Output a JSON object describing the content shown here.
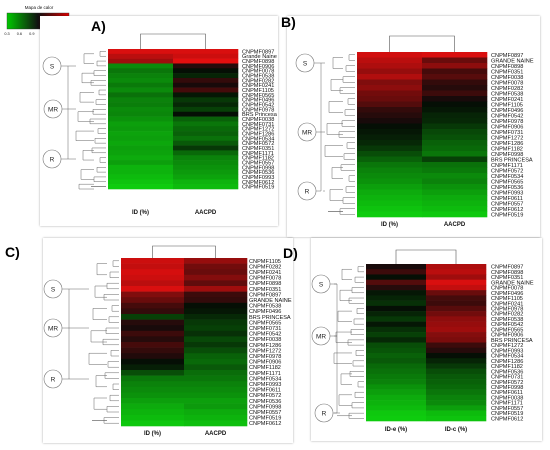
{
  "legend": {
    "title": "Mapa de calor",
    "ticks": [
      "0.3",
      "0.6",
      "0.9",
      "1.2",
      "1.5",
      "2.0"
    ]
  },
  "panels": [
    {
      "id": "A",
      "letter": "A)",
      "columns": [
        "ID (%)",
        "AACPD"
      ],
      "groups": [
        "S",
        "MR",
        "R"
      ],
      "rows": [
        {
          "name": "CNPMF0897",
          "v": [
            0.95,
            0.95
          ]
        },
        {
          "name": "Grande Naine",
          "v": [
            0.88,
            0.92
          ]
        },
        {
          "name": "CNPMF0898",
          "v": [
            0.82,
            0.97
          ]
        },
        {
          "name": "CNPMF0906",
          "v": [
            0.2,
            0.55
          ]
        },
        {
          "name": "CNPMF0078",
          "v": [
            0.25,
            0.5
          ]
        },
        {
          "name": "CNPMF0538",
          "v": [
            0.22,
            0.45
          ]
        },
        {
          "name": "CNPMF0282",
          "v": [
            0.2,
            0.58
          ]
        },
        {
          "name": "CNPMF0241",
          "v": [
            0.24,
            0.52
          ]
        },
        {
          "name": "CNPMF1105",
          "v": [
            0.2,
            0.62
          ]
        },
        {
          "name": "CNPMF0565",
          "v": [
            0.26,
            0.48
          ]
        },
        {
          "name": "CNPMF0496",
          "v": [
            0.22,
            0.4
          ]
        },
        {
          "name": "CNPMF0542",
          "v": [
            0.23,
            0.44
          ]
        },
        {
          "name": "CNPMF0978",
          "v": [
            0.2,
            0.38
          ]
        },
        {
          "name": "BRS Princesa",
          "v": [
            0.21,
            0.5
          ]
        },
        {
          "name": "CNPMF0038",
          "v": [
            0.18,
            0.3
          ]
        },
        {
          "name": "CNPMF0731",
          "v": [
            0.15,
            0.25
          ]
        },
        {
          "name": "CNPMF1272",
          "v": [
            0.16,
            0.28
          ]
        },
        {
          "name": "CNPMF1286",
          "v": [
            0.14,
            0.3
          ]
        },
        {
          "name": "CNPMF0534",
          "v": [
            0.15,
            0.26
          ]
        },
        {
          "name": "CNPMF0572",
          "v": [
            0.13,
            0.32
          ]
        },
        {
          "name": "CNPMF0351",
          "v": [
            0.15,
            0.4
          ]
        },
        {
          "name": "CNPMF1171",
          "v": [
            0.14,
            0.28
          ]
        },
        {
          "name": "CNPMF1182",
          "v": [
            0.12,
            0.22
          ]
        },
        {
          "name": "CNPMF0557",
          "v": [
            0.15,
            0.2
          ]
        },
        {
          "name": "CNPMF0998",
          "v": [
            0.1,
            0.18
          ]
        },
        {
          "name": "CNPMF0536",
          "v": [
            0.1,
            0.16
          ]
        },
        {
          "name": "CNPMF0993",
          "v": [
            0.08,
            0.14
          ]
        },
        {
          "name": "CNPMF0612",
          "v": [
            0.06,
            0.1
          ]
        },
        {
          "name": "CNPMF0519",
          "v": [
            0.04,
            0.08
          ]
        }
      ]
    },
    {
      "id": "B",
      "letter": "B)",
      "columns": [
        "ID (%)",
        "AACPD"
      ],
      "groups": [
        "S",
        "MR",
        "R"
      ],
      "rows": [
        {
          "name": "CNPMF0897",
          "v": [
            0.93,
            0.95
          ]
        },
        {
          "name": "GRANDE NAINE",
          "v": [
            0.88,
            0.7
          ]
        },
        {
          "name": "CNPMF0898",
          "v": [
            0.85,
            0.78
          ]
        },
        {
          "name": "CNPMF0351",
          "v": [
            0.8,
            0.62
          ]
        },
        {
          "name": "CNPMF0038",
          "v": [
            0.86,
            0.66
          ]
        },
        {
          "name": "CNPMF0078",
          "v": [
            0.75,
            0.58
          ]
        },
        {
          "name": "CNPMF0282",
          "v": [
            0.78,
            0.55
          ]
        },
        {
          "name": "CNPMF0538",
          "v": [
            0.72,
            0.6
          ]
        },
        {
          "name": "CNPMF0241",
          "v": [
            0.7,
            0.52
          ]
        },
        {
          "name": "CNPMF1105",
          "v": [
            0.65,
            0.5
          ]
        },
        {
          "name": "CNPMF0496",
          "v": [
            0.58,
            0.48
          ]
        },
        {
          "name": "CNPMF0542",
          "v": [
            0.55,
            0.45
          ]
        },
        {
          "name": "CNPMF0978",
          "v": [
            0.52,
            0.44
          ]
        },
        {
          "name": "CNPMF0906",
          "v": [
            0.5,
            0.4
          ]
        },
        {
          "name": "CNPMF0731",
          "v": [
            0.48,
            0.36
          ]
        },
        {
          "name": "CNPMF1272",
          "v": [
            0.46,
            0.34
          ]
        },
        {
          "name": "CNPMF1286",
          "v": [
            0.44,
            0.3
          ]
        },
        {
          "name": "CNPMF1182",
          "v": [
            0.4,
            0.28
          ]
        },
        {
          "name": "CNPMF0998",
          "v": [
            0.35,
            0.25
          ]
        },
        {
          "name": "BRS PRINCESA",
          "v": [
            0.3,
            0.38
          ]
        },
        {
          "name": "CNPMF1171",
          "v": [
            0.25,
            0.26
          ]
        },
        {
          "name": "CNPMF0572",
          "v": [
            0.22,
            0.24
          ]
        },
        {
          "name": "CNPMF0534",
          "v": [
            0.2,
            0.2
          ]
        },
        {
          "name": "CNPMF0565",
          "v": [
            0.18,
            0.22
          ]
        },
        {
          "name": "CNPMF0536",
          "v": [
            0.15,
            0.18
          ]
        },
        {
          "name": "CNPMF0993",
          "v": [
            0.12,
            0.15
          ]
        },
        {
          "name": "CNPMF0611",
          "v": [
            0.1,
            0.12
          ]
        },
        {
          "name": "CNPMF0557",
          "v": [
            0.08,
            0.1
          ]
        },
        {
          "name": "CNPMF0612",
          "v": [
            0.06,
            0.08
          ]
        },
        {
          "name": "CNPMF0519",
          "v": [
            0.04,
            0.05
          ]
        }
      ]
    },
    {
      "id": "C",
      "letter": "C)",
      "columns": [
        "ID (%)",
        "AACPD"
      ],
      "groups": [
        "S",
        "MR",
        "R"
      ],
      "rows": [
        {
          "name": "CNPMF1105",
          "v": [
            0.92,
            0.8
          ]
        },
        {
          "name": "CNPMF0282",
          "v": [
            0.9,
            0.72
          ]
        },
        {
          "name": "CNPMF0241",
          "v": [
            0.94,
            0.7
          ]
        },
        {
          "name": "CNPMF0078",
          "v": [
            0.92,
            0.76
          ]
        },
        {
          "name": "CNPMF0898",
          "v": [
            0.88,
            0.68
          ]
        },
        {
          "name": "CNPMF0351",
          "v": [
            0.95,
            0.82
          ]
        },
        {
          "name": "CNPMF0897",
          "v": [
            0.75,
            0.6
          ]
        },
        {
          "name": "GRANDE NAINE",
          "v": [
            0.7,
            0.58
          ]
        },
        {
          "name": "CNPMF0538",
          "v": [
            0.62,
            0.5
          ]
        },
        {
          "name": "CNPMF0496",
          "v": [
            0.58,
            0.48
          ]
        },
        {
          "name": "BRS PRINCESA",
          "v": [
            0.38,
            0.44
          ]
        },
        {
          "name": "CNPMF0565",
          "v": [
            0.55,
            0.4
          ]
        },
        {
          "name": "CNPMF0731",
          "v": [
            0.52,
            0.38
          ]
        },
        {
          "name": "CNPMF0542",
          "v": [
            0.6,
            0.42
          ]
        },
        {
          "name": "CNPMF0038",
          "v": [
            0.55,
            0.36
          ]
        },
        {
          "name": "CNPMF1286",
          "v": [
            0.62,
            0.4
          ]
        },
        {
          "name": "CNPMF1272",
          "v": [
            0.58,
            0.35
          ]
        },
        {
          "name": "CNPMF0978",
          "v": [
            0.54,
            0.3
          ]
        },
        {
          "name": "CNPMF0906",
          "v": [
            0.5,
            0.28
          ]
        },
        {
          "name": "CNPMF1182",
          "v": [
            0.46,
            0.32
          ]
        },
        {
          "name": "CNPMF1171",
          "v": [
            0.35,
            0.27
          ]
        },
        {
          "name": "CNPMF0534",
          "v": [
            0.25,
            0.25
          ]
        },
        {
          "name": "CNPMF0993",
          "v": [
            0.22,
            0.22
          ]
        },
        {
          "name": "CNPMF0611",
          "v": [
            0.2,
            0.2
          ]
        },
        {
          "name": "CNPMF0572",
          "v": [
            0.18,
            0.18
          ]
        },
        {
          "name": "CNPMF0536",
          "v": [
            0.15,
            0.15
          ]
        },
        {
          "name": "CNPMF0998",
          "v": [
            0.12,
            0.16
          ]
        },
        {
          "name": "CNPMF0557",
          "v": [
            0.1,
            0.12
          ]
        },
        {
          "name": "CNPMF0519",
          "v": [
            0.08,
            0.1
          ]
        },
        {
          "name": "CNPMF0612",
          "v": [
            0.05,
            0.07
          ]
        }
      ]
    },
    {
      "id": "D",
      "letter": "D)",
      "columns": [
        "ID-e (%)",
        "ID-c (%)"
      ],
      "groups": [
        "S",
        "MR",
        "R"
      ],
      "rows": [
        {
          "name": "CNPMF0897",
          "v": [
            0.52,
            0.85
          ]
        },
        {
          "name": "CNPMF0898",
          "v": [
            0.6,
            0.88
          ]
        },
        {
          "name": "CNPMF0351",
          "v": [
            0.5,
            0.82
          ]
        },
        {
          "name": "GRANDE NAINE",
          "v": [
            0.65,
            0.95
          ]
        },
        {
          "name": "CNPMF0078",
          "v": [
            0.55,
            0.9
          ]
        },
        {
          "name": "CNPMF0496",
          "v": [
            0.48,
            0.7
          ]
        },
        {
          "name": "CNPMF1105",
          "v": [
            0.45,
            0.62
          ]
        },
        {
          "name": "CNPMF0241",
          "v": [
            0.42,
            0.6
          ]
        },
        {
          "name": "CNPMF0978",
          "v": [
            0.5,
            0.66
          ]
        },
        {
          "name": "CNPMF0282",
          "v": [
            0.45,
            0.72
          ]
        },
        {
          "name": "CNPMF0538",
          "v": [
            0.4,
            0.78
          ]
        },
        {
          "name": "CNPMF0542",
          "v": [
            0.48,
            0.8
          ]
        },
        {
          "name": "CNPMF0565",
          "v": [
            0.42,
            0.82
          ]
        },
        {
          "name": "CNPMF0906",
          "v": [
            0.38,
            0.76
          ]
        },
        {
          "name": "BRS PRINCESA",
          "v": [
            0.44,
            0.74
          ]
        },
        {
          "name": "CNPMF1272",
          "v": [
            0.35,
            0.6
          ]
        },
        {
          "name": "CNPMF0993",
          "v": [
            0.33,
            0.55
          ]
        },
        {
          "name": "CNPMF0534",
          "v": [
            0.3,
            0.5
          ]
        },
        {
          "name": "CNPMF1286",
          "v": [
            0.32,
            0.45
          ]
        },
        {
          "name": "CNPMF1182",
          "v": [
            0.28,
            0.4
          ]
        },
        {
          "name": "CNPMF0536",
          "v": [
            0.26,
            0.35
          ]
        },
        {
          "name": "CNPMF0731",
          "v": [
            0.24,
            0.32
          ]
        },
        {
          "name": "CNPMF0572",
          "v": [
            0.22,
            0.3
          ]
        },
        {
          "name": "CNPMF0998",
          "v": [
            0.18,
            0.28
          ]
        },
        {
          "name": "CNPMF0611",
          "v": [
            0.15,
            0.25
          ]
        },
        {
          "name": "CNPMF0038",
          "v": [
            0.12,
            0.22
          ]
        },
        {
          "name": "CNPMF1171",
          "v": [
            0.1,
            0.2
          ]
        },
        {
          "name": "CNPMF0557",
          "v": [
            0.08,
            0.15
          ]
        },
        {
          "name": "CNPMF0519",
          "v": [
            0.05,
            0.08
          ]
        },
        {
          "name": "CNPMF0612",
          "v": [
            0.04,
            0.06
          ]
        }
      ]
    }
  ]
}
